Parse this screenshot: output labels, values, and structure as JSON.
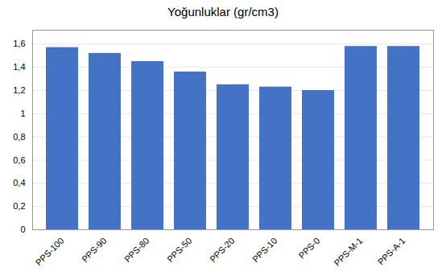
{
  "chart_data": {
    "type": "bar",
    "title": "Yoğunluklar  (gr/cm3)",
    "categories": [
      "PPS-100",
      "PPS-90",
      "PPS-80",
      "PPS-50",
      "PPS-20",
      "PPS-10",
      "PPS-0",
      "PPS-M-1",
      "PPS-A-1"
    ],
    "values": [
      1.57,
      1.52,
      1.45,
      1.36,
      1.25,
      1.23,
      1.2,
      1.58,
      1.58
    ],
    "color": "#4472C4",
    "ylim": [
      0,
      1.72
    ],
    "yticks": [
      0,
      {
        "value": 0.2,
        "label": "0,2"
      },
      {
        "value": 0.4,
        "label": "0,4"
      },
      {
        "value": 0.6,
        "label": "0,6"
      },
      {
        "value": 0.8,
        "label": "0,8"
      },
      1,
      {
        "value": 1.2,
        "label": "1,2"
      },
      {
        "value": 1.4,
        "label": "1,4"
      },
      {
        "value": 1.6,
        "label": "1,6"
      }
    ],
    "grid": true
  }
}
